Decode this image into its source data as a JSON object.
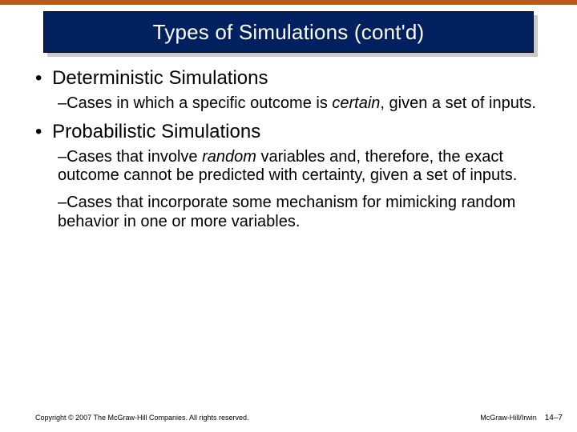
{
  "colors": {
    "accent": "#b85a1a",
    "title_bg": "#002060",
    "title_fg": "#ffffff",
    "shadow": "#c8c8c8",
    "text": "#000000",
    "page_bg": "#ffffff"
  },
  "title": "Types of Simulations (cont'd)",
  "body": {
    "items": [
      {
        "label": "Deterministic Simulations",
        "sub": [
          {
            "pre": "Cases in which a specific outcome is ",
            "em": "certain",
            "post": ", given a set of inputs."
          }
        ]
      },
      {
        "label": "Probabilistic Simulations",
        "sub": [
          {
            "pre": "Cases that involve ",
            "em": "random",
            "post": " variables and, therefore, the exact outcome cannot be predicted with certainty, given a set of inputs."
          },
          {
            "pre": "Cases that incorporate some mechanism for mimicking random behavior in one or more variables.",
            "em": "",
            "post": ""
          }
        ]
      }
    ]
  },
  "footer": {
    "copyright": "Copyright © 2007 The McGraw-Hill Companies. All rights reserved.",
    "brand": "McGraw-Hill/Irwin",
    "page": "14–7"
  }
}
